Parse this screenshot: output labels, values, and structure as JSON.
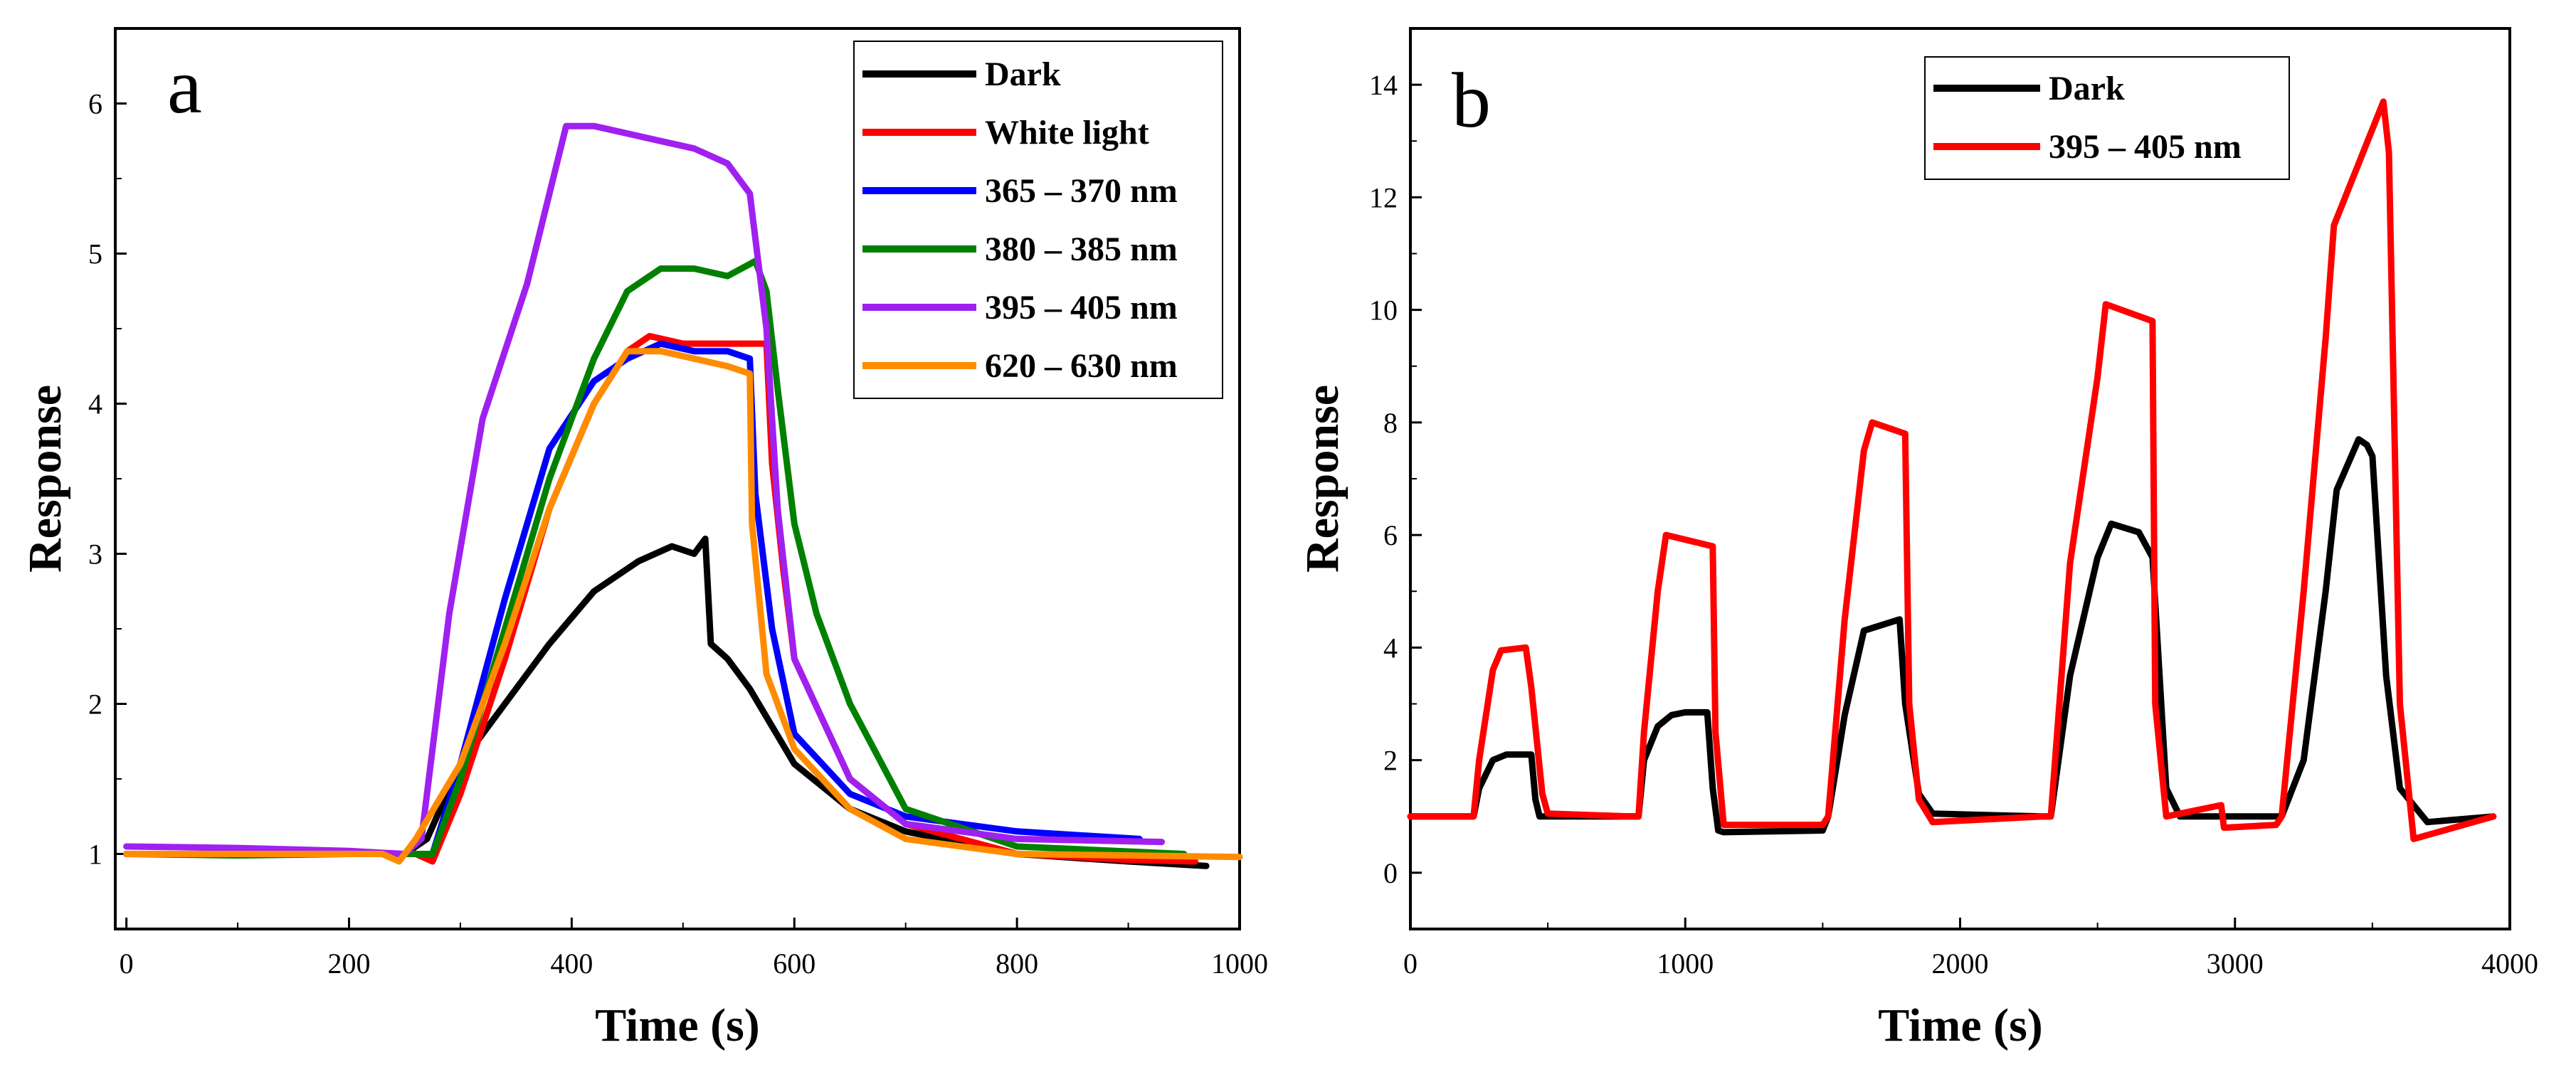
{
  "chart_data": [
    {
      "type": "line",
      "panel_label": "a",
      "xlabel": "Time (s)",
      "ylabel": "Response",
      "xlim": [
        -10,
        1000
      ],
      "ylim": [
        0.5,
        6.5
      ],
      "xticks": [
        0,
        200,
        400,
        600,
        800,
        1000
      ],
      "yticks": [
        1,
        2,
        3,
        4,
        5,
        6
      ],
      "legend_position": "top-right",
      "series": [
        {
          "name": "Dark",
          "color": "#000000",
          "x": [
            0,
            100,
            200,
            250,
            270,
            300,
            340,
            380,
            420,
            460,
            490,
            510,
            520,
            525,
            540,
            560,
            600,
            650,
            700,
            800,
            900,
            970
          ],
          "y": [
            1.0,
            1.0,
            1.0,
            1.0,
            1.1,
            1.6,
            2.0,
            2.4,
            2.75,
            2.95,
            3.05,
            3.0,
            3.1,
            2.4,
            2.3,
            2.1,
            1.6,
            1.3,
            1.15,
            1.0,
            0.95,
            0.92
          ]
        },
        {
          "name": "White light",
          "color": "#ff0000",
          "x": [
            0,
            100,
            200,
            260,
            275,
            300,
            340,
            380,
            420,
            450,
            470,
            500,
            530,
            560,
            575,
            580,
            590,
            600,
            650,
            700,
            800,
            900,
            960
          ],
          "y": [
            1.0,
            1.0,
            1.0,
            1.0,
            0.95,
            1.4,
            2.3,
            3.3,
            4.0,
            4.35,
            4.45,
            4.4,
            4.4,
            4.4,
            4.4,
            3.6,
            2.9,
            2.3,
            1.5,
            1.2,
            1.0,
            0.96,
            0.95
          ]
        },
        {
          "name": "365 – 370 nm",
          "color": "#0000ff",
          "x": [
            0,
            100,
            200,
            260,
            275,
            300,
            340,
            380,
            420,
            450,
            480,
            510,
            540,
            560,
            565,
            580,
            600,
            650,
            700,
            800,
            910
          ],
          "y": [
            1.0,
            1.0,
            1.0,
            1.0,
            1.0,
            1.6,
            2.7,
            3.7,
            4.15,
            4.3,
            4.4,
            4.35,
            4.35,
            4.3,
            3.4,
            2.5,
            1.8,
            1.4,
            1.25,
            1.15,
            1.1
          ]
        },
        {
          "name": "380 – 385 nm",
          "color": "#008000",
          "x": [
            0,
            100,
            200,
            260,
            275,
            300,
            340,
            380,
            420,
            450,
            480,
            510,
            540,
            565,
            575,
            585,
            600,
            620,
            650,
            700,
            800,
            950
          ],
          "y": [
            1.0,
            0.99,
            1.0,
            1.0,
            1.0,
            1.5,
            2.5,
            3.5,
            4.3,
            4.75,
            4.9,
            4.9,
            4.85,
            4.95,
            4.75,
            4.1,
            3.2,
            2.6,
            2.0,
            1.3,
            1.05,
            1.0
          ]
        },
        {
          "name": "395 – 405 nm",
          "color": "#a020f0",
          "x": [
            0,
            100,
            200,
            250,
            265,
            290,
            320,
            360,
            395,
            420,
            450,
            480,
            510,
            540,
            560,
            575,
            585,
            600,
            650,
            700,
            800,
            930
          ],
          "y": [
            1.05,
            1.04,
            1.02,
            1.0,
            1.1,
            2.6,
            3.9,
            4.8,
            5.85,
            5.85,
            5.8,
            5.75,
            5.7,
            5.6,
            5.4,
            4.5,
            3.3,
            2.3,
            1.5,
            1.2,
            1.1,
            1.08
          ]
        },
        {
          "name": "620 – 630 nm",
          "color": "#ff8c00",
          "x": [
            0,
            100,
            200,
            230,
            245,
            260,
            300,
            340,
            380,
            420,
            450,
            480,
            510,
            540,
            560,
            562,
            575,
            600,
            650,
            700,
            800,
            1000
          ],
          "y": [
            1.0,
            1.0,
            1.0,
            1.0,
            0.95,
            1.1,
            1.6,
            2.4,
            3.3,
            4.0,
            4.35,
            4.35,
            4.3,
            4.25,
            4.2,
            3.2,
            2.2,
            1.7,
            1.3,
            1.1,
            1.0,
            0.98
          ]
        }
      ]
    },
    {
      "type": "line",
      "panel_label": "b",
      "xlabel": "Time (s)",
      "ylabel": "Response",
      "xlim": [
        0,
        4000
      ],
      "ylim": [
        -1,
        15
      ],
      "xticks": [
        0,
        1000,
        2000,
        3000,
        4000
      ],
      "yticks": [
        0,
        2,
        4,
        6,
        8,
        10,
        12,
        14
      ],
      "legend_position": "top-left",
      "series": [
        {
          "name": "Dark",
          "color": "#000000",
          "x": [
            0,
            230,
            250,
            300,
            350,
            440,
            455,
            470,
            500,
            800,
            830,
            850,
            900,
            950,
            1000,
            1080,
            1100,
            1120,
            1140,
            1500,
            1520,
            1580,
            1650,
            1780,
            1800,
            1850,
            1900,
            2300,
            2330,
            2400,
            2500,
            2550,
            2650,
            2700,
            2750,
            2800,
            3150,
            3170,
            3250,
            3330,
            3370,
            3450,
            3480,
            3500,
            3550,
            3600,
            3700,
            3940
          ],
          "y": [
            1.0,
            1.0,
            1.5,
            2.0,
            2.1,
            2.1,
            1.3,
            1.0,
            1.0,
            1.0,
            1.0,
            2.0,
            2.6,
            2.8,
            2.85,
            2.85,
            1.5,
            0.75,
            0.72,
            0.75,
            1.0,
            2.8,
            4.3,
            4.5,
            3.0,
            1.4,
            1.05,
            1.0,
            1.0,
            3.5,
            5.6,
            6.2,
            6.05,
            5.6,
            1.5,
            1.0,
            1.0,
            1.0,
            2.0,
            5.0,
            6.8,
            7.7,
            7.6,
            7.4,
            3.5,
            1.5,
            0.9,
            1.0
          ]
        },
        {
          "name": "395 – 405 nm",
          "color": "#ff0000",
          "x": [
            0,
            230,
            250,
            300,
            330,
            420,
            440,
            480,
            500,
            800,
            830,
            850,
            900,
            930,
            1100,
            1110,
            1140,
            1500,
            1520,
            1580,
            1650,
            1680,
            1800,
            1815,
            1850,
            1900,
            2300,
            2330,
            2400,
            2500,
            2530,
            2700,
            2710,
            2750,
            2950,
            2960,
            3150,
            3170,
            3250,
            3330,
            3360,
            3540,
            3560,
            3600,
            3650,
            3940
          ],
          "y": [
            1.0,
            1.0,
            2.0,
            3.6,
            3.95,
            4.0,
            3.3,
            1.4,
            1.05,
            1.0,
            1.0,
            2.5,
            5.0,
            6.0,
            5.8,
            2.5,
            0.85,
            0.85,
            1.0,
            4.5,
            7.5,
            8.0,
            7.8,
            3.0,
            1.3,
            0.9,
            1.0,
            1.0,
            5.5,
            8.8,
            10.1,
            9.8,
            3.0,
            1.0,
            1.2,
            0.8,
            0.85,
            1.0,
            5.0,
            9.5,
            11.5,
            13.7,
            12.8,
            3.0,
            0.6,
            1.0
          ]
        }
      ]
    }
  ]
}
